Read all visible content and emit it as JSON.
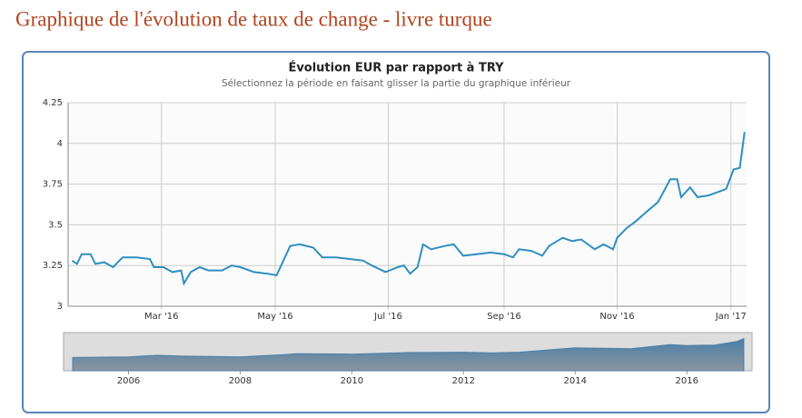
{
  "page_title": "Graphique de l'évolution de taux de change - livre turque",
  "chart_data": [
    {
      "type": "line",
      "title": "Évolution EUR par rapport à TRY",
      "subtitle": "Sélectionnez la période en faisant glisser la partie du graphique inférieur",
      "color": "#2f8fc0",
      "grid": true,
      "x": [
        2016.033,
        2016.04,
        2016.047,
        2016.06,
        2016.067,
        2016.08,
        2016.093,
        2016.107,
        2016.127,
        2016.147,
        2016.153,
        2016.167,
        2016.18,
        2016.193,
        2016.197,
        2016.207,
        2016.22,
        2016.233,
        2016.253,
        2016.267,
        2016.28,
        2016.3,
        2016.32,
        2016.333,
        2016.343,
        2016.353,
        2016.367,
        2016.387,
        2016.4,
        2016.42,
        2016.44,
        2016.46,
        2016.473,
        2016.493,
        2016.511,
        2016.52,
        2016.529,
        2016.54,
        2016.548,
        2016.56,
        2016.58,
        2016.593,
        2016.607,
        2016.627,
        2016.647,
        2016.667,
        2016.68,
        2016.689,
        2016.707,
        2016.723,
        2016.733,
        2016.753,
        2016.767,
        2016.78,
        2016.8,
        2016.813,
        2016.827,
        2016.833,
        2016.847,
        2016.86,
        2016.876,
        2016.893,
        2016.911,
        2016.921,
        2016.927,
        2016.94,
        2016.951,
        2016.967,
        2016.98,
        2016.993,
        2017.004,
        2017.013,
        2017.02
      ],
      "values": [
        3.28,
        3.26,
        3.32,
        3.32,
        3.26,
        3.27,
        3.24,
        3.3,
        3.3,
        3.29,
        3.24,
        3.24,
        3.21,
        3.22,
        3.14,
        3.21,
        3.24,
        3.22,
        3.22,
        3.25,
        3.24,
        3.21,
        3.2,
        3.19,
        3.28,
        3.37,
        3.38,
        3.36,
        3.3,
        3.3,
        3.29,
        3.28,
        3.25,
        3.21,
        3.24,
        3.25,
        3.2,
        3.24,
        3.38,
        3.35,
        3.37,
        3.38,
        3.31,
        3.32,
        3.33,
        3.32,
        3.3,
        3.35,
        3.34,
        3.31,
        3.37,
        3.42,
        3.4,
        3.41,
        3.35,
        3.38,
        3.35,
        3.42,
        3.48,
        3.52,
        3.58,
        3.64,
        3.78,
        3.78,
        3.67,
        3.73,
        3.67,
        3.68,
        3.7,
        3.72,
        3.84,
        3.85,
        4.07
      ],
      "xlim": [
        2016.027,
        2017.023
      ],
      "xticks": [
        {
          "value": 2016.164,
          "label": "Mar '16"
        },
        {
          "value": 2016.331,
          "label": "May '16"
        },
        {
          "value": 2016.497,
          "label": "Jul '16"
        },
        {
          "value": 2016.667,
          "label": "Sep '16"
        },
        {
          "value": 2016.833,
          "label": "Nov '16"
        },
        {
          "value": 2017.0,
          "label": "Jan '17"
        }
      ],
      "ylim": [
        3,
        4.25
      ],
      "yticks": [
        3,
        3.25,
        3.5,
        3.75,
        4,
        4.25
      ]
    },
    {
      "type": "area",
      "color": "#4a7fa8",
      "x": [
        2005.0,
        2006.0,
        2006.5,
        2007.0,
        2008.0,
        2008.8,
        2009.0,
        2010.0,
        2011.0,
        2012.0,
        2012.5,
        2013.0,
        2014.0,
        2014.5,
        2015.0,
        2015.7,
        2016.0,
        2016.5,
        2016.9,
        2017.02
      ],
      "values": [
        1.68,
        1.75,
        1.95,
        1.85,
        1.75,
        2.05,
        2.15,
        2.1,
        2.3,
        2.35,
        2.25,
        2.35,
        2.9,
        2.85,
        2.8,
        3.3,
        3.2,
        3.25,
        3.7,
        4.07
      ],
      "xlim": [
        2005.0,
        2017.07
      ],
      "xticks": [
        2006,
        2008,
        2010,
        2012,
        2014,
        2016
      ],
      "ylim": [
        0,
        4.6
      ]
    }
  ]
}
